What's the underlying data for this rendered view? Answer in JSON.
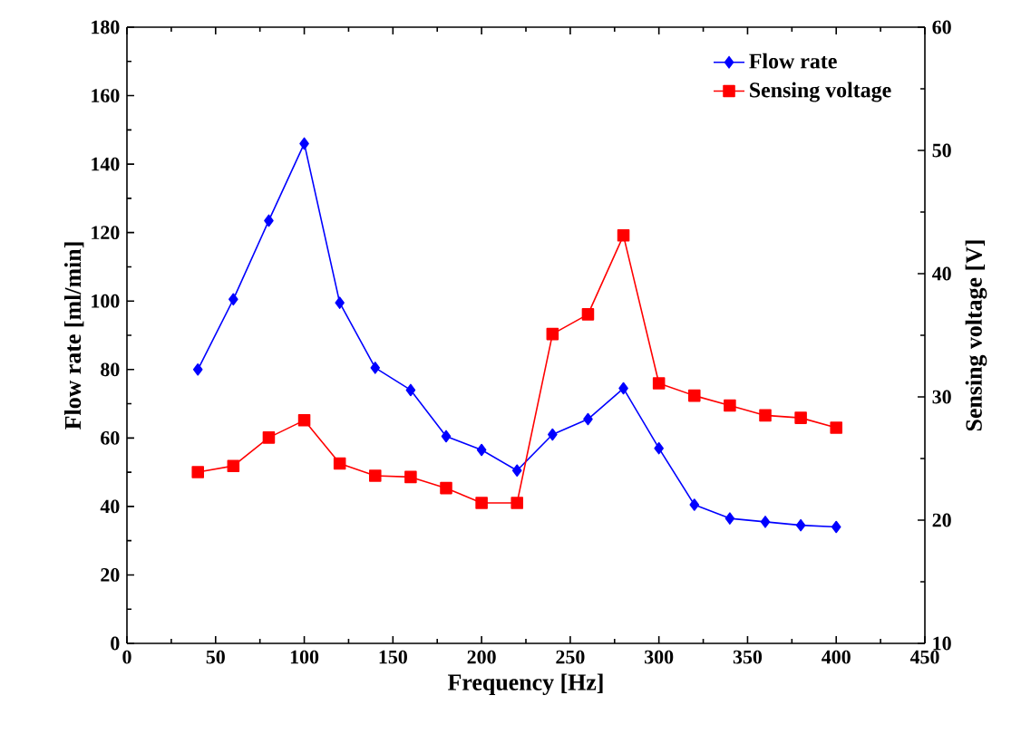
{
  "chart_data": {
    "type": "line",
    "xlabel": "Frequency [Hz]",
    "ylabel": "Flow rate [ml/min]",
    "y2label": "Sensing voltage [V]",
    "x": [
      40,
      60,
      80,
      100,
      120,
      140,
      160,
      180,
      200,
      220,
      240,
      260,
      280,
      300,
      320,
      340,
      360,
      380,
      400
    ],
    "series": [
      {
        "name": "Flow rate",
        "color": "#0000ff",
        "marker": "diamond",
        "values": [
          80,
          100.5,
          123.5,
          146,
          99.5,
          80.5,
          74,
          60.5,
          56.5,
          50.5,
          61,
          65.5,
          74.5,
          57,
          40.5,
          36.5,
          35.5,
          34.5,
          34
        ]
      },
      {
        "name": "Sensing voltage",
        "color": "#ff0000",
        "marker": "square",
        "axis": "y2",
        "values": [
          23.9,
          24.4,
          26.7,
          28.1,
          24.6,
          23.6,
          23.5,
          22.6,
          21.4,
          21.4,
          35.1,
          36.7,
          43.1,
          31.1,
          30.1,
          29.3,
          28.5,
          28.3,
          27.5
        ]
      }
    ],
    "xlim": [
      0,
      450
    ],
    "xticks": [
      0,
      50,
      100,
      150,
      200,
      250,
      300,
      350,
      400,
      450
    ],
    "ylim": [
      0,
      180
    ],
    "yticks": [
      0,
      20,
      40,
      60,
      80,
      100,
      120,
      140,
      160,
      180
    ],
    "y2lim": [
      10,
      60
    ],
    "y2ticks": [
      10,
      20,
      30,
      40,
      50,
      60
    ],
    "legend": "top right",
    "grid": false,
    "line_style": "solid"
  }
}
